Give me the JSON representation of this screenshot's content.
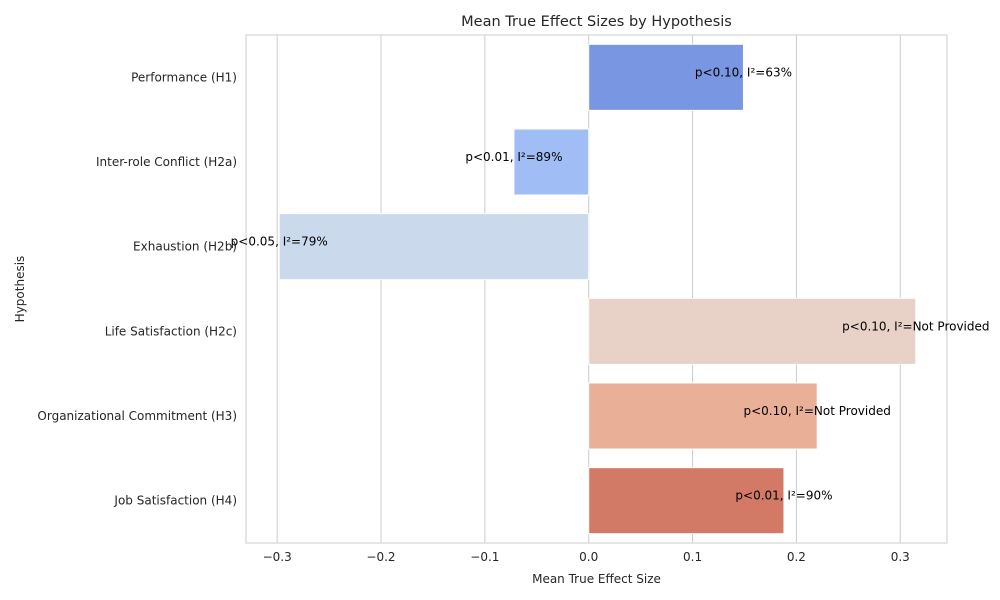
{
  "chart_data": {
    "type": "bar",
    "orientation": "horizontal",
    "title": "Mean True Effect Sizes by Hypothesis",
    "xlabel": "Mean True Effect Size",
    "ylabel": "Hypothesis",
    "xlim": [
      -0.33,
      0.345
    ],
    "xticks": [
      -0.3,
      -0.2,
      -0.1,
      0.0,
      0.1,
      0.2,
      0.3
    ],
    "xtick_labels": [
      "−0.3",
      "−0.2",
      "−0.1",
      "0.0",
      "0.1",
      "0.2",
      "0.3"
    ],
    "grid": true,
    "categories": [
      "Performance (H1)",
      "Inter-role Conflict (H2a)",
      "Exhaustion (H2b)",
      "Life Satisfaction (H2c)",
      "Organizational Commitment (H3)",
      "Job Satisfaction (H4)"
    ],
    "values": [
      0.149,
      -0.072,
      -0.298,
      0.315,
      0.22,
      0.188
    ],
    "annotations": [
      "p<0.10, I²=63%",
      "p<0.01, I²=89%",
      "p<0.05, I²=79%",
      "p<0.10, I²=Not Provided",
      "p<0.10, I²=Not Provided",
      "p<0.01, I²=90%"
    ],
    "colors": [
      "#7896e1",
      "#a1bdf5",
      "#cbd9ec",
      "#e8d2c8",
      "#eaaf97",
      "#d37a67"
    ]
  }
}
